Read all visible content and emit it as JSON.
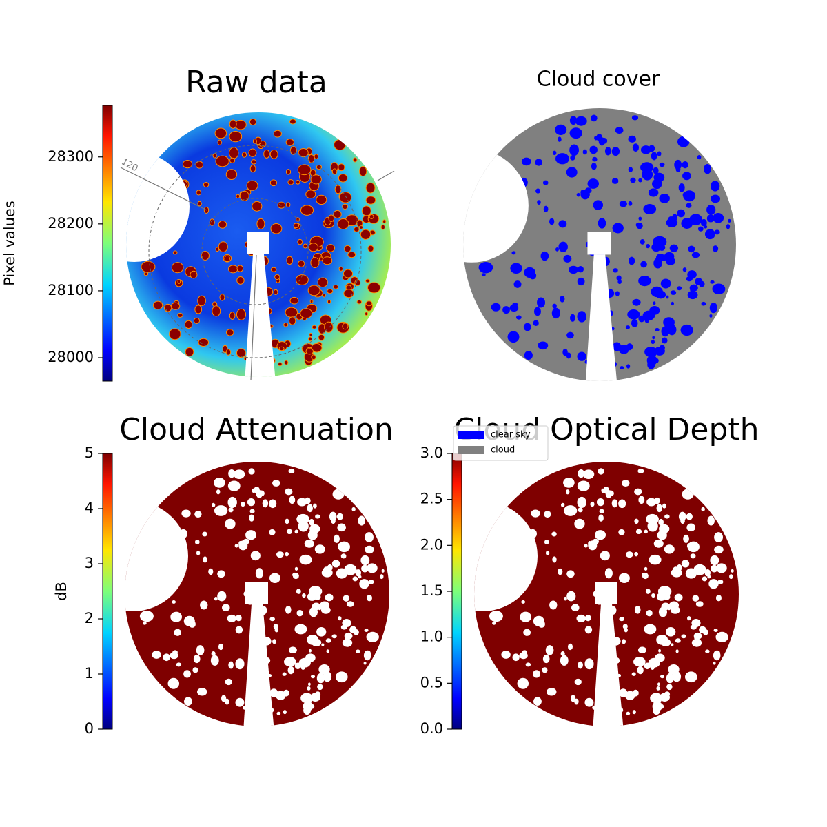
{
  "chart_data": [
    {
      "type": "image",
      "title": "Raw data",
      "colorbar_label": "Pixel values",
      "colormap": "jet",
      "ylim": [
        27965,
        28377
      ],
      "yticks": [
        28000,
        28100,
        28200,
        28300
      ],
      "annotations": [
        "120"
      ]
    },
    {
      "type": "image",
      "title": "Cloud cover",
      "series": [
        {
          "name": "clear sky",
          "color": "#0000ff"
        },
        {
          "name": "cloud",
          "color": "#808080"
        }
      ]
    },
    {
      "type": "image",
      "title": "Cloud Attenuation",
      "colorbar_label": "dB",
      "colormap": "jet",
      "color": "#7f0000",
      "ylim": [
        0,
        5
      ],
      "yticks": [
        0,
        1,
        2,
        3,
        4,
        5
      ]
    },
    {
      "type": "image",
      "title": "Cloud Optical Depth",
      "colormap": "jet",
      "color": "#7f0000",
      "ylim": [
        0,
        3
      ],
      "yticks": [
        {
          "value": 0,
          "label": "0.0"
        },
        0.5,
        {
          "value": 1,
          "label": "1.0"
        },
        1.5,
        {
          "value": 2,
          "label": "2.0"
        },
        2.5,
        {
          "value": 3,
          "label": "3.0"
        }
      ]
    }
  ]
}
